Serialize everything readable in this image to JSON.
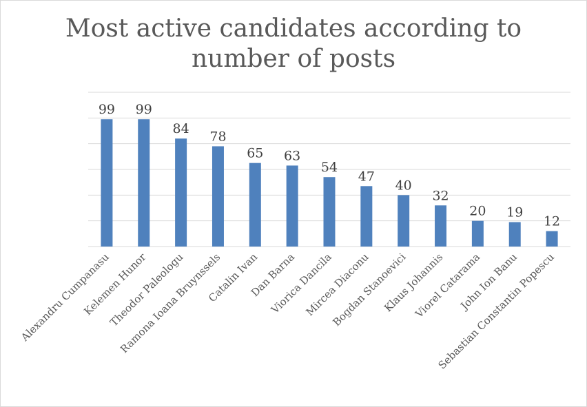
{
  "chart_data": {
    "type": "bar",
    "title_line1": "Most active candidates according to",
    "title_line2": "number of posts",
    "categories": [
      "Alexandru Cumpanasu",
      "Kelemen Hunor",
      "Theodor Paleologu",
      "Ramona Ioana Bruynssels",
      "Catalin Ivan",
      "Dan Barna",
      "Viorica Dancila",
      "Mircea Diaconu",
      "Bogdan Stanoevici",
      "Klaus Johannis",
      "Viorel Catarama",
      "John Ion Banu",
      "Sebastian Constantin Popescu"
    ],
    "values": [
      99,
      99,
      84,
      78,
      65,
      63,
      54,
      47,
      40,
      32,
      20,
      19,
      12
    ],
    "xlabel": "",
    "ylabel": "",
    "ylim": [
      0,
      120
    ],
    "grid": true,
    "bar_color": "#4f81bd",
    "grid_color": "#d9d9d9"
  }
}
